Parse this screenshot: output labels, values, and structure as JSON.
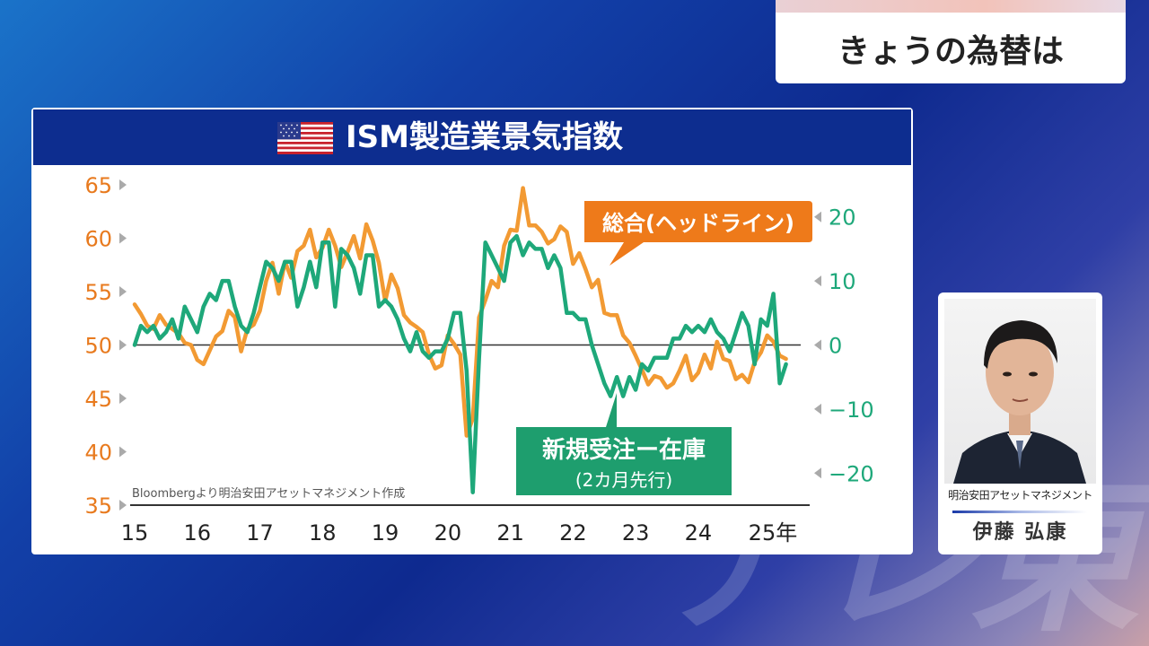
{
  "watermark": "テレ東",
  "topic_banner": {
    "text": "きょうの為替は"
  },
  "chart_data": {
    "type": "line",
    "title": "ISM製造業景気指数",
    "source": "Bloombergより明治安田アセットマネジメント作成",
    "x_ticks": [
      "15",
      "16",
      "17",
      "18",
      "19",
      "20",
      "21",
      "22",
      "23",
      "24",
      "25年"
    ],
    "x_tick_values": [
      2015,
      2016,
      2017,
      2018,
      2019,
      2020,
      2021,
      2022,
      2023,
      2024,
      2025
    ],
    "xlim": [
      2015,
      2025.75
    ],
    "left_axis": {
      "ticks": [
        65,
        60,
        55,
        50,
        45,
        40,
        35
      ],
      "ylim": [
        35,
        65
      ],
      "color": "#e87a1e"
    },
    "right_axis": {
      "ticks": [
        20,
        10,
        0,
        -10,
        -20
      ],
      "ylim": [
        -25,
        25
      ],
      "color": "#1ea87a"
    },
    "series": [
      {
        "name": "総合(ヘッドライン)",
        "axis": "left",
        "color": "#f29a33",
        "points": [
          [
            2015.0,
            53.8
          ],
          [
            2015.1,
            52.9
          ],
          [
            2015.2,
            51.8
          ],
          [
            2015.3,
            51.5
          ],
          [
            2015.4,
            52.8
          ],
          [
            2015.5,
            51.9
          ],
          [
            2015.6,
            51.5
          ],
          [
            2015.7,
            51.1
          ],
          [
            2015.8,
            50.2
          ],
          [
            2015.9,
            50.0
          ],
          [
            2016.0,
            48.6
          ],
          [
            2016.1,
            48.2
          ],
          [
            2016.2,
            49.5
          ],
          [
            2016.3,
            50.8
          ],
          [
            2016.4,
            51.3
          ],
          [
            2016.5,
            53.2
          ],
          [
            2016.6,
            52.6
          ],
          [
            2016.7,
            49.4
          ],
          [
            2016.8,
            51.5
          ],
          [
            2016.9,
            51.9
          ],
          [
            2017.0,
            53.2
          ],
          [
            2017.1,
            56.0
          ],
          [
            2017.2,
            57.7
          ],
          [
            2017.3,
            54.8
          ],
          [
            2017.4,
            57.8
          ],
          [
            2017.5,
            56.3
          ],
          [
            2017.6,
            58.8
          ],
          [
            2017.7,
            59.3
          ],
          [
            2017.8,
            60.8
          ],
          [
            2017.9,
            58.2
          ],
          [
            2018.0,
            59.1
          ],
          [
            2018.1,
            60.8
          ],
          [
            2018.2,
            59.3
          ],
          [
            2018.3,
            57.3
          ],
          [
            2018.4,
            58.7
          ],
          [
            2018.5,
            60.2
          ],
          [
            2018.6,
            58.1
          ],
          [
            2018.7,
            61.3
          ],
          [
            2018.8,
            59.8
          ],
          [
            2018.9,
            57.7
          ],
          [
            2019.0,
            54.1
          ],
          [
            2019.1,
            56.6
          ],
          [
            2019.2,
            55.3
          ],
          [
            2019.3,
            52.8
          ],
          [
            2019.4,
            52.1
          ],
          [
            2019.5,
            51.7
          ],
          [
            2019.6,
            51.2
          ],
          [
            2019.7,
            49.1
          ],
          [
            2019.8,
            47.8
          ],
          [
            2019.9,
            48.1
          ],
          [
            2020.0,
            50.9
          ],
          [
            2020.1,
            50.1
          ],
          [
            2020.2,
            49.1
          ],
          [
            2020.3,
            41.5
          ],
          [
            2020.4,
            43.1
          ],
          [
            2020.5,
            52.6
          ],
          [
            2020.6,
            54.2
          ],
          [
            2020.7,
            56.0
          ],
          [
            2020.8,
            55.4
          ],
          [
            2020.9,
            59.3
          ],
          [
            2021.0,
            60.8
          ],
          [
            2021.1,
            60.7
          ],
          [
            2021.2,
            64.7
          ],
          [
            2021.3,
            61.2
          ],
          [
            2021.4,
            61.2
          ],
          [
            2021.5,
            60.6
          ],
          [
            2021.6,
            59.5
          ],
          [
            2021.7,
            59.9
          ],
          [
            2021.8,
            61.1
          ],
          [
            2021.9,
            60.6
          ],
          [
            2022.0,
            57.6
          ],
          [
            2022.1,
            58.6
          ],
          [
            2022.2,
            57.1
          ],
          [
            2022.3,
            55.4
          ],
          [
            2022.4,
            56.1
          ],
          [
            2022.5,
            53.0
          ],
          [
            2022.6,
            52.8
          ],
          [
            2022.7,
            52.8
          ],
          [
            2022.8,
            50.9
          ],
          [
            2022.9,
            50.2
          ],
          [
            2023.0,
            49.0
          ],
          [
            2023.1,
            47.7
          ],
          [
            2023.2,
            46.3
          ],
          [
            2023.3,
            47.1
          ],
          [
            2023.4,
            46.9
          ],
          [
            2023.5,
            46.0
          ],
          [
            2023.6,
            46.4
          ],
          [
            2023.7,
            47.6
          ],
          [
            2023.8,
            49.0
          ],
          [
            2023.9,
            46.7
          ],
          [
            2024.0,
            47.4
          ],
          [
            2024.1,
            49.1
          ],
          [
            2024.2,
            47.8
          ],
          [
            2024.3,
            50.3
          ],
          [
            2024.4,
            48.7
          ],
          [
            2024.5,
            48.5
          ],
          [
            2024.6,
            46.8
          ],
          [
            2024.7,
            47.2
          ],
          [
            2024.8,
            46.5
          ],
          [
            2024.9,
            48.4
          ],
          [
            2025.0,
            49.3
          ],
          [
            2025.1,
            50.9
          ],
          [
            2025.2,
            50.3
          ],
          [
            2025.3,
            49.0
          ],
          [
            2025.4,
            48.7
          ]
        ]
      },
      {
        "name": "新規受注ー在庫",
        "note": "(2カ月先行)",
        "axis": "right",
        "color": "#1ea87a",
        "points": [
          [
            2015.0,
            0
          ],
          [
            2015.1,
            3
          ],
          [
            2015.2,
            2
          ],
          [
            2015.3,
            3
          ],
          [
            2015.4,
            1
          ],
          [
            2015.5,
            2
          ],
          [
            2015.6,
            4
          ],
          [
            2015.7,
            1
          ],
          [
            2015.8,
            6
          ],
          [
            2015.9,
            4
          ],
          [
            2016.0,
            2
          ],
          [
            2016.1,
            6
          ],
          [
            2016.2,
            8
          ],
          [
            2016.3,
            7
          ],
          [
            2016.4,
            10
          ],
          [
            2016.5,
            10
          ],
          [
            2016.6,
            6
          ],
          [
            2016.7,
            3
          ],
          [
            2016.8,
            2
          ],
          [
            2016.9,
            5
          ],
          [
            2017.0,
            9
          ],
          [
            2017.1,
            13
          ],
          [
            2017.2,
            12
          ],
          [
            2017.3,
            10
          ],
          [
            2017.4,
            13
          ],
          [
            2017.5,
            13
          ],
          [
            2017.6,
            6
          ],
          [
            2017.7,
            9
          ],
          [
            2017.8,
            13
          ],
          [
            2017.9,
            9
          ],
          [
            2018.0,
            16
          ],
          [
            2018.1,
            16
          ],
          [
            2018.2,
            6
          ],
          [
            2018.3,
            15
          ],
          [
            2018.4,
            14
          ],
          [
            2018.5,
            12
          ],
          [
            2018.6,
            8
          ],
          [
            2018.7,
            14
          ],
          [
            2018.8,
            14
          ],
          [
            2018.9,
            6
          ],
          [
            2019.0,
            7
          ],
          [
            2019.1,
            6
          ],
          [
            2019.2,
            4
          ],
          [
            2019.3,
            1
          ],
          [
            2019.4,
            -1
          ],
          [
            2019.5,
            2
          ],
          [
            2019.6,
            -1
          ],
          [
            2019.7,
            -2
          ],
          [
            2019.8,
            -1
          ],
          [
            2019.9,
            -1
          ],
          [
            2020.0,
            1
          ],
          [
            2020.1,
            5
          ],
          [
            2020.2,
            5
          ],
          [
            2020.3,
            -4
          ],
          [
            2020.4,
            -23
          ],
          [
            2020.5,
            -2
          ],
          [
            2020.6,
            16
          ],
          [
            2020.7,
            14
          ],
          [
            2020.8,
            12
          ],
          [
            2020.9,
            10
          ],
          [
            2021.0,
            16
          ],
          [
            2021.1,
            17
          ],
          [
            2021.2,
            14
          ],
          [
            2021.3,
            16
          ],
          [
            2021.4,
            15
          ],
          [
            2021.5,
            15
          ],
          [
            2021.6,
            12
          ],
          [
            2021.7,
            14
          ],
          [
            2021.8,
            12
          ],
          [
            2021.9,
            5
          ],
          [
            2022.0,
            5
          ],
          [
            2022.1,
            4
          ],
          [
            2022.2,
            4
          ],
          [
            2022.3,
            0
          ],
          [
            2022.4,
            -3
          ],
          [
            2022.5,
            -6
          ],
          [
            2022.6,
            -8
          ],
          [
            2022.7,
            -5
          ],
          [
            2022.8,
            -8
          ],
          [
            2022.9,
            -5
          ],
          [
            2023.0,
            -7
          ],
          [
            2023.1,
            -3
          ],
          [
            2023.2,
            -4
          ],
          [
            2023.3,
            -2
          ],
          [
            2023.4,
            -2
          ],
          [
            2023.5,
            -2
          ],
          [
            2023.6,
            1
          ],
          [
            2023.7,
            1
          ],
          [
            2023.8,
            3
          ],
          [
            2023.9,
            2
          ],
          [
            2024.0,
            3
          ],
          [
            2024.1,
            2
          ],
          [
            2024.2,
            4
          ],
          [
            2024.3,
            2
          ],
          [
            2024.4,
            1
          ],
          [
            2024.5,
            -1
          ],
          [
            2024.6,
            2
          ],
          [
            2024.7,
            5
          ],
          [
            2024.8,
            3
          ],
          [
            2024.9,
            -3
          ],
          [
            2025.0,
            4
          ],
          [
            2025.1,
            3
          ],
          [
            2025.2,
            8
          ],
          [
            2025.3,
            -6
          ],
          [
            2025.4,
            -3
          ]
        ]
      }
    ],
    "zero_line": 50
  },
  "presenter": {
    "company": "明治安田アセットマネジメント",
    "name": "伊藤 弘康"
  }
}
